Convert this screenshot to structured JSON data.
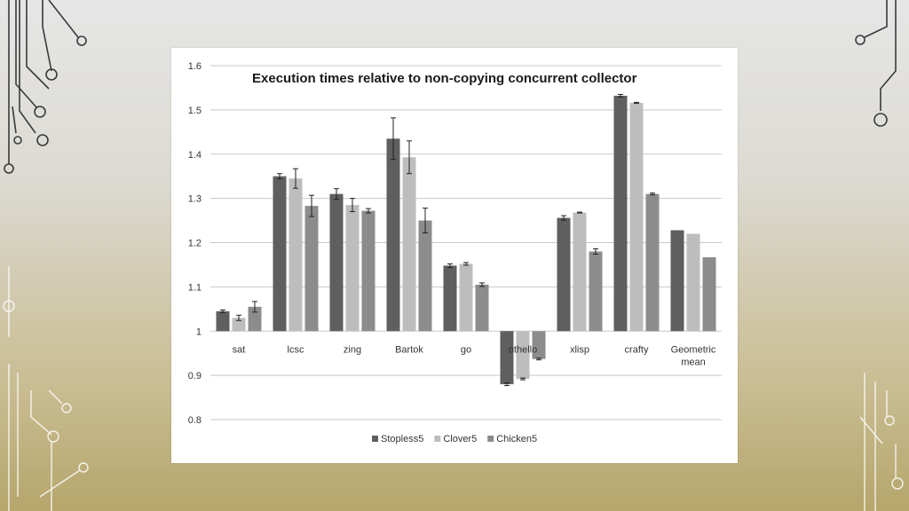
{
  "slide": {
    "background_colors": [
      "#e6e6e6",
      "#b6a66c"
    ],
    "decoration": "circuit-lines"
  },
  "chart_data": {
    "type": "bar",
    "title": "Execution times relative to non-copying concurrent collector",
    "xlabel": "",
    "ylabel": "",
    "ylim": [
      0.8,
      1.6
    ],
    "baseline": 1,
    "yticks": [
      "1.6",
      "1.5",
      "1.4",
      "1.3",
      "1.2",
      "1.1",
      "1",
      "0.9",
      "0.8"
    ],
    "ytick_values": [
      1.6,
      1.5,
      1.4,
      1.3,
      1.2,
      1.1,
      1.0,
      0.9,
      0.8
    ],
    "grid": true,
    "legend_position": "bottom",
    "categories": [
      [
        "sat"
      ],
      [
        "lcsc"
      ],
      [
        "zing"
      ],
      [
        "Bartok"
      ],
      [
        "go"
      ],
      [
        "othello"
      ],
      [
        "xlisp"
      ],
      [
        "crafty"
      ],
      [
        "Geometric",
        "mean"
      ]
    ],
    "series": [
      {
        "name": "Stopless5",
        "color": "#5f5f5f",
        "values": [
          1.045,
          1.35,
          1.31,
          1.435,
          1.148,
          0.88,
          1.256,
          1.532,
          1.228
        ],
        "errors": [
          0.003,
          0.006,
          0.012,
          0.047,
          0.004,
          0.003,
          0.005,
          0.003,
          0
        ]
      },
      {
        "name": "Clover5",
        "color": "#bdbdbd",
        "values": [
          1.03,
          1.345,
          1.285,
          1.393,
          1.152,
          0.892,
          1.268,
          1.516,
          1.22
        ],
        "errors": [
          0.006,
          0.022,
          0.015,
          0.037,
          0.003,
          0.002,
          0.001,
          0.001,
          0
        ]
      },
      {
        "name": "Chicken5",
        "color": "#8c8c8c",
        "values": [
          1.055,
          1.283,
          1.272,
          1.25,
          1.105,
          0.937,
          1.18,
          1.31,
          1.167
        ],
        "errors": [
          0.012,
          0.024,
          0.005,
          0.028,
          0.004,
          0.002,
          0.006,
          0.002,
          0
        ]
      }
    ]
  }
}
